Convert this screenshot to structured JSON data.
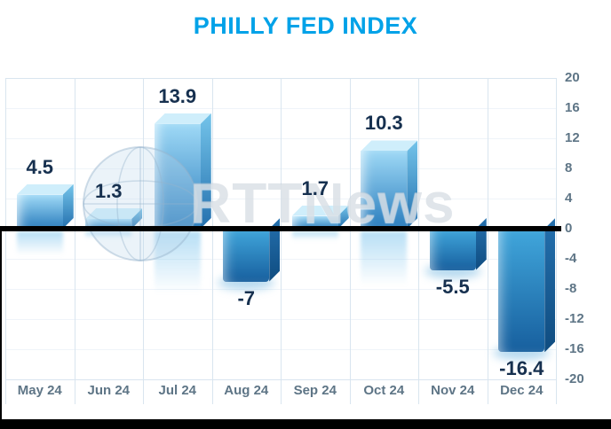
{
  "title": "PHILLY FED INDEX",
  "watermark": "RTTNews",
  "chart_data": {
    "type": "bar",
    "title": "PHILLY FED INDEX",
    "categories": [
      "May 24",
      "Jun 24",
      "Jul 24",
      "Aug 24",
      "Sep 24",
      "Oct 24",
      "Nov 24",
      "Dec 24"
    ],
    "values": [
      4.5,
      1.3,
      13.9,
      -7,
      1.7,
      10.3,
      -5.5,
      -16.4
    ],
    "labels": [
      "4.5",
      "1.3",
      "13.9",
      "-7",
      "1.7",
      "10.3",
      "-5.5",
      "-16.4"
    ],
    "xlabel": "",
    "ylabel": "",
    "ylim": [
      -20,
      20
    ],
    "yticks": [
      20,
      16,
      12,
      8,
      4,
      0,
      -4,
      -8,
      -12,
      -16,
      -20
    ],
    "grid": true,
    "legend": false,
    "zero_line": true
  },
  "colors": {
    "title": "#00A2E8",
    "bar_top": "#CFEEFB",
    "bar_front_light": "#9FD9F6",
    "bar_front_dark": "#2A7DBD",
    "bar_side_light": "#74C4EA",
    "bar_side": "#2470AE",
    "neg_front_light": "#41A7DC",
    "neg_front_dark": "#175F9E",
    "neg_side_dark": "#0F4C80",
    "value_label": "#16304F",
    "axis_text": "#5E7586",
    "zero_line": "#000000",
    "grid_line": "#D9E5EF"
  }
}
